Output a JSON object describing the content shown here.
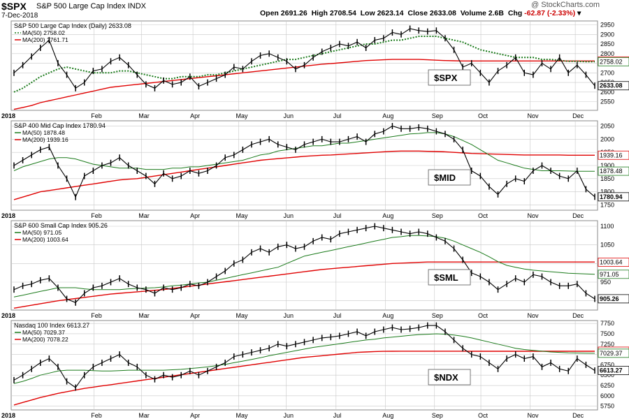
{
  "header": {
    "symbol": "$SPX",
    "name": "S&P 500 Large Cap Index",
    "exchange": "INDX",
    "date": "7-Dec-2018",
    "open_label": "Open",
    "open": "2691.26",
    "high_label": "High",
    "high": "2708.54",
    "low_label": "Low",
    "low": "2623.14",
    "close_label": "Close",
    "close": "2633.08",
    "volume_label": "Volume",
    "volume": "2.6B",
    "chg_label": "Chg",
    "chg": "-62.87 (-2.33%)",
    "brand": "@ StockCharts.com"
  },
  "colors": {
    "price": "#000000",
    "ma50": "#1a7a1a",
    "ma200": "#e00000",
    "grid": "#c8c8c8",
    "panel_border": "#888888"
  },
  "chart_data": [
    {
      "type": "line",
      "symbol": "$SPX",
      "legend_title": "S&P 500 Large Cap Index (Daily) 2633.08",
      "series": [
        {
          "name": "MA(50) 2758.02",
          "style": "dotted"
        },
        {
          "name": "MA(200) 2761.71"
        }
      ],
      "label": "$SPX",
      "x_labels": [
        "2018",
        "Feb",
        "Mar",
        "Apr",
        "May",
        "Jun",
        "Jul",
        "Aug",
        "Sep",
        "Oct",
        "Nov",
        "Dec"
      ],
      "y_ticks": [
        2550,
        2600,
        2650,
        2700,
        2750,
        2800,
        2850,
        2900,
        2950
      ],
      "ylim": [
        2505,
        2970
      ],
      "value_tags": [
        {
          "text": "2761.71",
          "value": 2761.71,
          "kind": "ma200"
        },
        {
          "text": "2758.02",
          "value": 2758.02,
          "kind": "ma50"
        },
        {
          "text": "2633.08",
          "value": 2633.08,
          "kind": "price"
        }
      ],
      "price": [
        2700,
        2740,
        2785,
        2830,
        2870,
        2750,
        2690,
        2620,
        2650,
        2710,
        2720,
        2760,
        2780,
        2740,
        2690,
        2640,
        2620,
        2660,
        2640,
        2650,
        2680,
        2630,
        2650,
        2670,
        2690,
        2730,
        2720,
        2760,
        2790,
        2800,
        2780,
        2760,
        2720,
        2740,
        2780,
        2810,
        2830,
        2850,
        2840,
        2860,
        2830,
        2870,
        2880,
        2910,
        2900,
        2930,
        2920,
        2915,
        2920,
        2880,
        2820,
        2730,
        2750,
        2700,
        2650,
        2710,
        2740,
        2780,
        2700,
        2690,
        2750,
        2720,
        2780,
        2700,
        2740,
        2690,
        2633
      ],
      "ma50": [
        2600,
        2620,
        2650,
        2680,
        2700,
        2720,
        2730,
        2720,
        2710,
        2700,
        2700,
        2700,
        2710,
        2710,
        2700,
        2690,
        2680,
        2670,
        2670,
        2680,
        2680,
        2680,
        2690,
        2690,
        2700,
        2710,
        2720,
        2730,
        2740,
        2750,
        2760,
        2770,
        2770,
        2780,
        2790,
        2800,
        2810,
        2820,
        2830,
        2840,
        2850,
        2850,
        2860,
        2870,
        2870,
        2880,
        2890,
        2890,
        2890,
        2880,
        2870,
        2860,
        2840,
        2820,
        2810,
        2800,
        2790,
        2780,
        2780,
        2780,
        2770,
        2770,
        2765,
        2760,
        2760,
        2758,
        2758
      ],
      "ma200": [
        2510,
        2520,
        2530,
        2545,
        2555,
        2565,
        2575,
        2585,
        2595,
        2605,
        2615,
        2625,
        2630,
        2635,
        2640,
        2645,
        2650,
        2655,
        2660,
        2665,
        2670,
        2675,
        2680,
        2685,
        2690,
        2695,
        2700,
        2705,
        2710,
        2715,
        2720,
        2725,
        2730,
        2735,
        2740,
        2745,
        2748,
        2752,
        2756,
        2760,
        2764,
        2766,
        2768,
        2770,
        2770,
        2770,
        2770,
        2768,
        2766,
        2764,
        2763,
        2762,
        2762,
        2762,
        2762,
        2762,
        2762,
        2762,
        2762,
        2762,
        2762,
        2762,
        2762,
        2762,
        2762,
        2762,
        2762
      ]
    },
    {
      "type": "line",
      "symbol": "$MID",
      "legend_title": "S&P 400 Mid Cap Index 1780.94",
      "series": [
        {
          "name": "MA(50) 1878.48"
        },
        {
          "name": "MA(200) 1939.16"
        }
      ],
      "label": "$MID",
      "x_labels": [
        "2018",
        "Feb",
        "Mar",
        "Apr",
        "May",
        "Jun",
        "Jul",
        "Aug",
        "Sep",
        "Oct",
        "Nov",
        "Dec"
      ],
      "y_ticks": [
        1750,
        1800,
        1850,
        1900,
        1950,
        2000,
        2050
      ],
      "ylim": [
        1730,
        2070
      ],
      "value_tags": [
        {
          "text": "1939.16",
          "value": 1939.16,
          "kind": "ma200"
        },
        {
          "text": "1878.48",
          "value": 1878.48,
          "kind": "ma50"
        },
        {
          "text": "1780.94",
          "value": 1780.94,
          "kind": "price"
        }
      ],
      "price": [
        1900,
        1920,
        1940,
        1960,
        1970,
        1900,
        1850,
        1780,
        1860,
        1880,
        1900,
        1910,
        1930,
        1900,
        1880,
        1860,
        1830,
        1870,
        1850,
        1860,
        1880,
        1870,
        1880,
        1900,
        1930,
        1940,
        1960,
        1980,
        1990,
        2000,
        1980,
        1970,
        1960,
        1980,
        1990,
        2000,
        1990,
        1990,
        2000,
        2010,
        1990,
        2020,
        2030,
        2050,
        2040,
        2040,
        2045,
        2040,
        2030,
        2020,
        2000,
        1960,
        1880,
        1860,
        1820,
        1790,
        1830,
        1850,
        1840,
        1880,
        1900,
        1880,
        1860,
        1850,
        1880,
        1810,
        1781
      ],
      "ma50": [
        1880,
        1895,
        1905,
        1915,
        1925,
        1930,
        1930,
        1925,
        1915,
        1905,
        1900,
        1895,
        1890,
        1890,
        1890,
        1885,
        1885,
        1885,
        1890,
        1890,
        1895,
        1895,
        1900,
        1905,
        1910,
        1915,
        1920,
        1930,
        1940,
        1945,
        1955,
        1960,
        1965,
        1970,
        1975,
        1975,
        1980,
        1985,
        1985,
        1990,
        1995,
        2000,
        2005,
        2010,
        2015,
        2020,
        2022,
        2025,
        2025,
        2020,
        2010,
        1995,
        1980,
        1960,
        1940,
        1920,
        1910,
        1900,
        1890,
        1885,
        1880,
        1880,
        1880,
        1879,
        1878,
        1878,
        1878
      ],
      "ma200": [
        1770,
        1780,
        1790,
        1800,
        1805,
        1810,
        1815,
        1820,
        1825,
        1830,
        1835,
        1840,
        1845,
        1848,
        1850,
        1855,
        1860,
        1865,
        1870,
        1875,
        1880,
        1885,
        1890,
        1895,
        1900,
        1905,
        1910,
        1915,
        1920,
        1923,
        1926,
        1929,
        1932,
        1935,
        1937,
        1939,
        1940,
        1942,
        1944,
        1946,
        1948,
        1950,
        1952,
        1954,
        1955,
        1955,
        1955,
        1954,
        1953,
        1952,
        1950,
        1948,
        1946,
        1945,
        1944,
        1943,
        1942,
        1941,
        1940,
        1940,
        1940,
        1940,
        1940,
        1939,
        1939,
        1939,
        1939
      ]
    },
    {
      "type": "line",
      "symbol": "$SML",
      "legend_title": "S&P 600 Small Cap Index 905.26",
      "series": [
        {
          "name": "MA(50) 971.05"
        },
        {
          "name": "MA(200) 1003.64"
        }
      ],
      "label": "$SML",
      "x_labels": [
        "2018",
        "Feb",
        "Mar",
        "Apr",
        "May",
        "Jun",
        "Jul",
        "Aug",
        "Sep",
        "Oct",
        "Nov",
        "Dec"
      ],
      "y_ticks": [
        900,
        950,
        1000,
        1050,
        1100
      ],
      "ylim": [
        875,
        1115
      ],
      "value_tags": [
        {
          "text": "1003.64",
          "value": 1003.64,
          "kind": "ma200"
        },
        {
          "text": "971.05",
          "value": 971.05,
          "kind": "ma50"
        },
        {
          "text": "905.26",
          "value": 905.26,
          "kind": "price"
        }
      ],
      "price": [
        930,
        940,
        945,
        955,
        960,
        935,
        905,
        895,
        920,
        935,
        940,
        950,
        960,
        945,
        935,
        930,
        920,
        935,
        930,
        935,
        945,
        940,
        950,
        965,
        980,
        1000,
        1010,
        1030,
        1040,
        1030,
        1045,
        1050,
        1040,
        1045,
        1060,
        1070,
        1065,
        1080,
        1085,
        1090,
        1095,
        1100,
        1095,
        1090,
        1085,
        1080,
        1085,
        1080,
        1070,
        1060,
        1040,
        1010,
        975,
        965,
        950,
        930,
        945,
        960,
        950,
        970,
        965,
        950,
        940,
        940,
        945,
        920,
        905
      ],
      "ma50": [
        910,
        915,
        920,
        925,
        930,
        935,
        935,
        935,
        932,
        930,
        930,
        930,
        930,
        932,
        933,
        934,
        935,
        937,
        940,
        942,
        945,
        948,
        950,
        955,
        960,
        965,
        970,
        975,
        980,
        985,
        990,
        1000,
        1010,
        1020,
        1025,
        1030,
        1035,
        1040,
        1045,
        1050,
        1055,
        1060,
        1065,
        1070,
        1072,
        1075,
        1075,
        1074,
        1072,
        1068,
        1060,
        1050,
        1040,
        1030,
        1018,
        1005,
        995,
        990,
        985,
        982,
        980,
        978,
        976,
        974,
        973,
        972,
        971
      ],
      "ma200": [
        880,
        884,
        888,
        892,
        896,
        900,
        903,
        906,
        909,
        912,
        915,
        918,
        920,
        922,
        924,
        926,
        928,
        930,
        933,
        936,
        939,
        942,
        945,
        948,
        951,
        954,
        957,
        960,
        963,
        966,
        969,
        972,
        975,
        978,
        981,
        984,
        986,
        988,
        990,
        992,
        994,
        996,
        998,
        1000,
        1001,
        1002,
        1003,
        1004,
        1004,
        1004,
        1004,
        1004,
        1004,
        1004,
        1004,
        1004,
        1004,
        1004,
        1004,
        1004,
        1004,
        1004,
        1004,
        1004,
        1004,
        1004,
        1004
      ]
    },
    {
      "type": "line",
      "symbol": "$NDX",
      "legend_title": "Nasdaq 100 Index 6613.27",
      "series": [
        {
          "name": "MA(50) 7029.37"
        },
        {
          "name": "MA(200) 7078.22"
        }
      ],
      "label": "$NDX",
      "x_labels": [
        "2018",
        "Feb",
        "Mar",
        "Apr",
        "May",
        "Jun",
        "Jul",
        "Aug",
        "Sep",
        "Oct",
        "Nov",
        "Dec"
      ],
      "y_ticks": [
        5750,
        6000,
        6250,
        6500,
        6750,
        7000,
        7250,
        7500,
        7750
      ],
      "ylim": [
        5660,
        7820
      ],
      "value_tags": [
        {
          "text": "7078.22",
          "value": 7078.22,
          "kind": "ma200"
        },
        {
          "text": "7029.37",
          "value": 7029.37,
          "kind": "ma50"
        },
        {
          "text": "6613.27",
          "value": 6613.27,
          "kind": "price"
        }
      ],
      "price": [
        6380,
        6500,
        6650,
        6800,
        6900,
        6700,
        6350,
        6200,
        6500,
        6700,
        6800,
        6900,
        7000,
        6800,
        6700,
        6500,
        6400,
        6500,
        6450,
        6500,
        6600,
        6500,
        6600,
        6700,
        6800,
        6950,
        7000,
        7050,
        7100,
        7150,
        7250,
        7200,
        7250,
        7300,
        7350,
        7400,
        7420,
        7450,
        7500,
        7550,
        7450,
        7550,
        7600,
        7650,
        7600,
        7620,
        7650,
        7700,
        7700,
        7550,
        7350,
        7150,
        7000,
        6950,
        6800,
        6650,
        6900,
        7000,
        6900,
        6950,
        6700,
        6800,
        6650,
        6600,
        6900,
        6750,
        6613
      ],
      "ma50": [
        6300,
        6350,
        6420,
        6500,
        6550,
        6600,
        6620,
        6620,
        6620,
        6610,
        6600,
        6600,
        6610,
        6620,
        6620,
        6620,
        6620,
        6620,
        6630,
        6640,
        6660,
        6680,
        6700,
        6730,
        6760,
        6800,
        6840,
        6880,
        6920,
        6970,
        7010,
        7050,
        7090,
        7130,
        7170,
        7200,
        7230,
        7260,
        7290,
        7320,
        7350,
        7370,
        7400,
        7420,
        7440,
        7460,
        7480,
        7490,
        7500,
        7490,
        7470,
        7440,
        7400,
        7350,
        7300,
        7250,
        7200,
        7150,
        7120,
        7100,
        7080,
        7060,
        7050,
        7040,
        7035,
        7030,
        7029
      ],
      "ma200": [
        5780,
        5840,
        5900,
        5960,
        6010,
        6060,
        6100,
        6140,
        6180,
        6210,
        6240,
        6270,
        6300,
        6330,
        6360,
        6390,
        6420,
        6450,
        6480,
        6510,
        6540,
        6570,
        6600,
        6630,
        6660,
        6690,
        6720,
        6750,
        6780,
        6810,
        6840,
        6870,
        6900,
        6930,
        6950,
        6970,
        6990,
        7010,
        7030,
        7050,
        7060,
        7070,
        7075,
        7078,
        7080,
        7080,
        7080,
        7080,
        7080,
        7079,
        7079,
        7079,
        7078,
        7078,
        7078,
        7078,
        7078,
        7078,
        7078,
        7078,
        7078,
        7078,
        7078,
        7078,
        7078,
        7078,
        7078
      ]
    }
  ]
}
